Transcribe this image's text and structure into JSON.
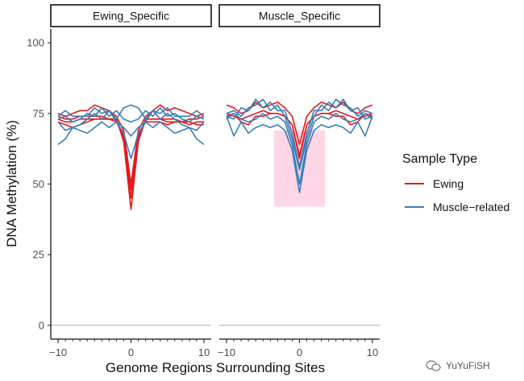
{
  "chart_data": {
    "type": "line",
    "panels": [
      "Ewing_Specific",
      "Muscle_Specific"
    ],
    "ylabel": "DNA Methylation (%)",
    "xlabel": "Genome Regions Surrounding Sites",
    "ylim": [
      0,
      100
    ],
    "yticks": [
      0,
      25,
      50,
      75,
      100
    ],
    "xlim": [
      -10,
      10
    ],
    "xticks": [
      -10,
      0,
      10
    ],
    "x_minor_ticks": [
      -9,
      -8,
      -7,
      -6,
      -5,
      -4,
      -3,
      -2,
      -1,
      1,
      2,
      3,
      4,
      5,
      6,
      7,
      8,
      9
    ],
    "x": [
      -10,
      -9,
      -8,
      -7,
      -6,
      -5,
      -4,
      -3,
      -2,
      -1,
      0,
      1,
      2,
      3,
      4,
      5,
      6,
      7,
      8,
      9,
      10
    ],
    "legend": {
      "title": "Sample Type",
      "entries": [
        {
          "label": "Ewing",
          "color": "#e41a1c"
        },
        {
          "label": "Muscle−related",
          "color": "#377eb8"
        }
      ]
    },
    "highlight": {
      "panel": "Muscle_Specific",
      "x_range": [
        -3.5,
        3.5
      ],
      "y_range": [
        42,
        69
      ],
      "color": "#ffd6e7"
    },
    "series": [
      {
        "panel": "Ewing_Specific",
        "group": "Ewing",
        "values": [
          72,
          71,
          70,
          71,
          72,
          73,
          73,
          73,
          73,
          65,
          41,
          65,
          73,
          73,
          73,
          73,
          73,
          72,
          71,
          72,
          72
        ]
      },
      {
        "panel": "Ewing_Specific",
        "group": "Ewing",
        "values": [
          73,
          72,
          72,
          73,
          73,
          73,
          73,
          73,
          73,
          66,
          45,
          66,
          73,
          73,
          73,
          72,
          72,
          72,
          72,
          71,
          71
        ]
      },
      {
        "panel": "Ewing_Specific",
        "group": "Ewing",
        "values": [
          74,
          73,
          73,
          74,
          74,
          74,
          74,
          73,
          72,
          67,
          48,
          67,
          72,
          72,
          72,
          71,
          72,
          72,
          73,
          73,
          74
        ]
      },
      {
        "panel": "Ewing_Specific",
        "group": "Ewing",
        "values": [
          75,
          74,
          75,
          76,
          76,
          78,
          77,
          76,
          74,
          69,
          50,
          69,
          74,
          76,
          78,
          76,
          77,
          76,
          75,
          74,
          75
        ]
      },
      {
        "panel": "Ewing_Specific",
        "group": "Muscle-related",
        "values": [
          64,
          66,
          70,
          69,
          68,
          70,
          72,
          70,
          72,
          68,
          59,
          68,
          72,
          70,
          72,
          70,
          68,
          69,
          70,
          66,
          64
        ]
      },
      {
        "panel": "Ewing_Specific",
        "group": "Muscle-related",
        "values": [
          72,
          69,
          70,
          71,
          73,
          75,
          73,
          76,
          72,
          70,
          67,
          70,
          72,
          76,
          73,
          75,
          73,
          71,
          70,
          69,
          72
        ]
      },
      {
        "panel": "Ewing_Specific",
        "group": "Muscle-related",
        "values": [
          73,
          74,
          72,
          73,
          75,
          74,
          77,
          74,
          76,
          73,
          72,
          73,
          76,
          74,
          77,
          74,
          75,
          73,
          72,
          74,
          73
        ]
      },
      {
        "panel": "Ewing_Specific",
        "group": "Muscle-related",
        "values": [
          74,
          76,
          74,
          74,
          74,
          77,
          75,
          76,
          73,
          77,
          78,
          77,
          73,
          76,
          75,
          77,
          74,
          74,
          74,
          76,
          74
        ]
      },
      {
        "panel": "Muscle_Specific",
        "group": "Ewing",
        "values": [
          78,
          77,
          75,
          76,
          79,
          77,
          78,
          79,
          77,
          74,
          64,
          74,
          77,
          79,
          78,
          77,
          79,
          76,
          75,
          77,
          78
        ]
      },
      {
        "panel": "Muscle_Specific",
        "group": "Ewing",
        "values": [
          75,
          74,
          73,
          74,
          75,
          76,
          75,
          75,
          74,
          71,
          60,
          71,
          74,
          75,
          75,
          76,
          75,
          74,
          73,
          74,
          75
        ]
      },
      {
        "panel": "Muscle_Specific",
        "group": "Ewing",
        "values": [
          74,
          75,
          72,
          71,
          74,
          74,
          75,
          75,
          74,
          71,
          59,
          71,
          74,
          75,
          75,
          74,
          74,
          71,
          72,
          75,
          74
        ]
      },
      {
        "panel": "Muscle_Specific",
        "group": "Muscle-related",
        "values": [
          74,
          67,
          72,
          68,
          70,
          71,
          70,
          71,
          69,
          62,
          47,
          62,
          69,
          71,
          70,
          71,
          70,
          68,
          72,
          67,
          74
        ]
      },
      {
        "panel": "Muscle_Specific",
        "group": "Muscle-related",
        "values": [
          73,
          75,
          73,
          72,
          73,
          75,
          73,
          74,
          72,
          64,
          50,
          64,
          72,
          74,
          73,
          75,
          73,
          72,
          73,
          75,
          73
        ]
      },
      {
        "panel": "Muscle_Specific",
        "group": "Muscle-related",
        "values": [
          75,
          76,
          74,
          77,
          78,
          80,
          76,
          78,
          74,
          66,
          55,
          66,
          74,
          78,
          76,
          80,
          78,
          77,
          74,
          76,
          75
        ]
      },
      {
        "panel": "Muscle_Specific",
        "group": "Muscle-related",
        "values": [
          74,
          73,
          77,
          76,
          80,
          77,
          79,
          76,
          76,
          68,
          56,
          68,
          76,
          76,
          79,
          77,
          80,
          76,
          77,
          73,
          74
        ]
      }
    ]
  },
  "watermark": "YuYuFiSH"
}
